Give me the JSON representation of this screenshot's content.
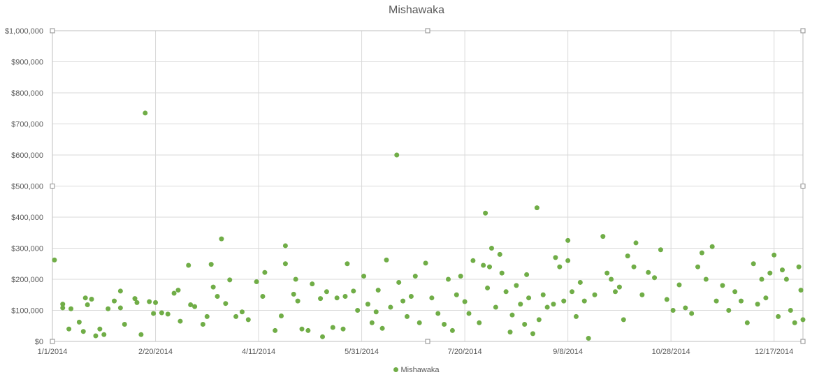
{
  "chart_data": {
    "type": "scatter",
    "title": "Mishawaka",
    "xlabel": "",
    "ylabel": "",
    "x_axis": {
      "type": "date",
      "min": "2014-01-01",
      "max": "2014-12-31",
      "tick_labels": [
        "1/1/2014",
        "2/20/2014",
        "4/11/2014",
        "5/31/2014",
        "7/20/2014",
        "9/8/2014",
        "10/28/2014",
        "12/17/2014"
      ]
    },
    "y_axis": {
      "min": 0,
      "max": 1000000,
      "step": 100000,
      "tick_labels": [
        "$0",
        "$100,000",
        "$200,000",
        "$300,000",
        "$400,000",
        "$500,000",
        "$600,000",
        "$700,000",
        "$800,000",
        "$900,000",
        "$1,000,000"
      ]
    },
    "grid": true,
    "legend": {
      "position": "bottom",
      "entries": [
        "Mishawaka"
      ]
    },
    "series": [
      {
        "name": "Mishawaka",
        "color": "#70AD47",
        "points": [
          [
            "2014-01-02",
            262000
          ],
          [
            "2014-01-06",
            120000
          ],
          [
            "2014-01-06",
            108000
          ],
          [
            "2014-01-09",
            40000
          ],
          [
            "2014-01-10",
            105000
          ],
          [
            "2014-01-14",
            62000
          ],
          [
            "2014-01-16",
            32000
          ],
          [
            "2014-01-17",
            140000
          ],
          [
            "2014-01-18",
            118000
          ],
          [
            "2014-01-20",
            136000
          ],
          [
            "2014-01-22",
            18000
          ],
          [
            "2014-01-24",
            40000
          ],
          [
            "2014-01-26",
            22000
          ],
          [
            "2014-01-28",
            105000
          ],
          [
            "2014-01-31",
            130000
          ],
          [
            "2014-02-03",
            162000
          ],
          [
            "2014-02-03",
            108000
          ],
          [
            "2014-02-05",
            55000
          ],
          [
            "2014-02-10",
            138000
          ],
          [
            "2014-02-11",
            125000
          ],
          [
            "2014-02-13",
            22000
          ],
          [
            "2014-02-15",
            735000
          ],
          [
            "2014-02-17",
            128000
          ],
          [
            "2014-02-19",
            90000
          ],
          [
            "2014-02-20",
            125000
          ],
          [
            "2014-02-23",
            92000
          ],
          [
            "2014-02-26",
            88000
          ],
          [
            "2014-03-01",
            155000
          ],
          [
            "2014-03-03",
            165000
          ],
          [
            "2014-03-04",
            65000
          ],
          [
            "2014-03-08",
            245000
          ],
          [
            "2014-03-09",
            118000
          ],
          [
            "2014-03-11",
            112000
          ],
          [
            "2014-03-15",
            55000
          ],
          [
            "2014-03-17",
            80000
          ],
          [
            "2014-03-19",
            248000
          ],
          [
            "2014-03-20",
            175000
          ],
          [
            "2014-03-22",
            145000
          ],
          [
            "2014-03-24",
            330000
          ],
          [
            "2014-03-26",
            122000
          ],
          [
            "2014-03-28",
            198000
          ],
          [
            "2014-03-31",
            80000
          ],
          [
            "2014-04-03",
            95000
          ],
          [
            "2014-04-06",
            70000
          ],
          [
            "2014-04-10",
            192000
          ],
          [
            "2014-04-13",
            145000
          ],
          [
            "2014-04-14",
            222000
          ],
          [
            "2014-04-19",
            35000
          ],
          [
            "2014-04-22",
            82000
          ],
          [
            "2014-04-24",
            308000
          ],
          [
            "2014-04-24",
            250000
          ],
          [
            "2014-04-28",
            152000
          ],
          [
            "2014-04-29",
            200000
          ],
          [
            "2014-04-30",
            130000
          ],
          [
            "2014-05-02",
            40000
          ],
          [
            "2014-05-05",
            35000
          ],
          [
            "2014-05-07",
            185000
          ],
          [
            "2014-05-11",
            138000
          ],
          [
            "2014-05-12",
            15000
          ],
          [
            "2014-05-14",
            160000
          ],
          [
            "2014-05-17",
            45000
          ],
          [
            "2014-05-19",
            140000
          ],
          [
            "2014-05-22",
            40000
          ],
          [
            "2014-05-23",
            145000
          ],
          [
            "2014-05-24",
            250000
          ],
          [
            "2014-05-27",
            162000
          ],
          [
            "2014-05-29",
            100000
          ],
          [
            "2014-06-01",
            210000
          ],
          [
            "2014-06-03",
            120000
          ],
          [
            "2014-06-05",
            60000
          ],
          [
            "2014-06-07",
            95000
          ],
          [
            "2014-06-08",
            165000
          ],
          [
            "2014-06-10",
            42000
          ],
          [
            "2014-06-12",
            262000
          ],
          [
            "2014-06-14",
            110000
          ],
          [
            "2014-06-17",
            600000
          ],
          [
            "2014-06-18",
            190000
          ],
          [
            "2014-06-20",
            130000
          ],
          [
            "2014-06-22",
            80000
          ],
          [
            "2014-06-24",
            145000
          ],
          [
            "2014-06-26",
            210000
          ],
          [
            "2014-06-28",
            60000
          ],
          [
            "2014-07-01",
            252000
          ],
          [
            "2014-07-04",
            140000
          ],
          [
            "2014-07-07",
            90000
          ],
          [
            "2014-07-10",
            55000
          ],
          [
            "2014-07-12",
            200000
          ],
          [
            "2014-07-14",
            35000
          ],
          [
            "2014-07-16",
            150000
          ],
          [
            "2014-07-18",
            210000
          ],
          [
            "2014-07-20",
            128000
          ],
          [
            "2014-07-22",
            90000
          ],
          [
            "2014-07-24",
            260000
          ],
          [
            "2014-07-27",
            60000
          ],
          [
            "2014-07-29",
            245000
          ],
          [
            "2014-07-30",
            413000
          ],
          [
            "2014-07-31",
            172000
          ],
          [
            "2014-08-01",
            240000
          ],
          [
            "2014-08-02",
            300000
          ],
          [
            "2014-08-04",
            110000
          ],
          [
            "2014-08-06",
            280000
          ],
          [
            "2014-08-07",
            220000
          ],
          [
            "2014-08-09",
            160000
          ],
          [
            "2014-08-11",
            30000
          ],
          [
            "2014-08-12",
            85000
          ],
          [
            "2014-08-14",
            180000
          ],
          [
            "2014-08-16",
            120000
          ],
          [
            "2014-08-18",
            55000
          ],
          [
            "2014-08-19",
            215000
          ],
          [
            "2014-08-20",
            140000
          ],
          [
            "2014-08-22",
            25000
          ],
          [
            "2014-08-24",
            430000
          ],
          [
            "2014-08-25",
            70000
          ],
          [
            "2014-08-27",
            150000
          ],
          [
            "2014-08-29",
            110000
          ],
          [
            "2014-09-01",
            120000
          ],
          [
            "2014-09-02",
            270000
          ],
          [
            "2014-09-04",
            240000
          ],
          [
            "2014-09-06",
            130000
          ],
          [
            "2014-09-08",
            325000
          ],
          [
            "2014-09-08",
            260000
          ],
          [
            "2014-09-10",
            160000
          ],
          [
            "2014-09-12",
            80000
          ],
          [
            "2014-09-14",
            190000
          ],
          [
            "2014-09-16",
            130000
          ],
          [
            "2014-09-18",
            10000
          ],
          [
            "2014-09-21",
            150000
          ],
          [
            "2014-09-25",
            338000
          ],
          [
            "2014-09-27",
            220000
          ],
          [
            "2014-09-29",
            200000
          ],
          [
            "2014-10-01",
            160000
          ],
          [
            "2014-10-03",
            175000
          ],
          [
            "2014-10-05",
            70000
          ],
          [
            "2014-10-07",
            275000
          ],
          [
            "2014-10-10",
            240000
          ],
          [
            "2014-10-11",
            317000
          ],
          [
            "2014-10-14",
            150000
          ],
          [
            "2014-10-17",
            222000
          ],
          [
            "2014-10-20",
            205000
          ],
          [
            "2014-10-23",
            295000
          ],
          [
            "2014-10-26",
            135000
          ],
          [
            "2014-10-29",
            100000
          ],
          [
            "2014-11-01",
            182000
          ],
          [
            "2014-11-04",
            108000
          ],
          [
            "2014-11-07",
            90000
          ],
          [
            "2014-11-10",
            240000
          ],
          [
            "2014-11-12",
            285000
          ],
          [
            "2014-11-14",
            200000
          ],
          [
            "2014-11-17",
            305000
          ],
          [
            "2014-11-19",
            130000
          ],
          [
            "2014-11-22",
            180000
          ],
          [
            "2014-11-25",
            100000
          ],
          [
            "2014-11-28",
            160000
          ],
          [
            "2014-12-01",
            130000
          ],
          [
            "2014-12-04",
            60000
          ],
          [
            "2014-12-07",
            250000
          ],
          [
            "2014-12-09",
            120000
          ],
          [
            "2014-12-11",
            200000
          ],
          [
            "2014-12-13",
            140000
          ],
          [
            "2014-12-15",
            220000
          ],
          [
            "2014-12-17",
            278000
          ],
          [
            "2014-12-19",
            80000
          ],
          [
            "2014-12-21",
            230000
          ],
          [
            "2014-12-23",
            200000
          ],
          [
            "2014-12-25",
            100000
          ],
          [
            "2014-12-27",
            60000
          ],
          [
            "2014-12-29",
            240000
          ],
          [
            "2014-12-30",
            165000
          ],
          [
            "2014-12-31",
            70000
          ]
        ]
      }
    ]
  }
}
